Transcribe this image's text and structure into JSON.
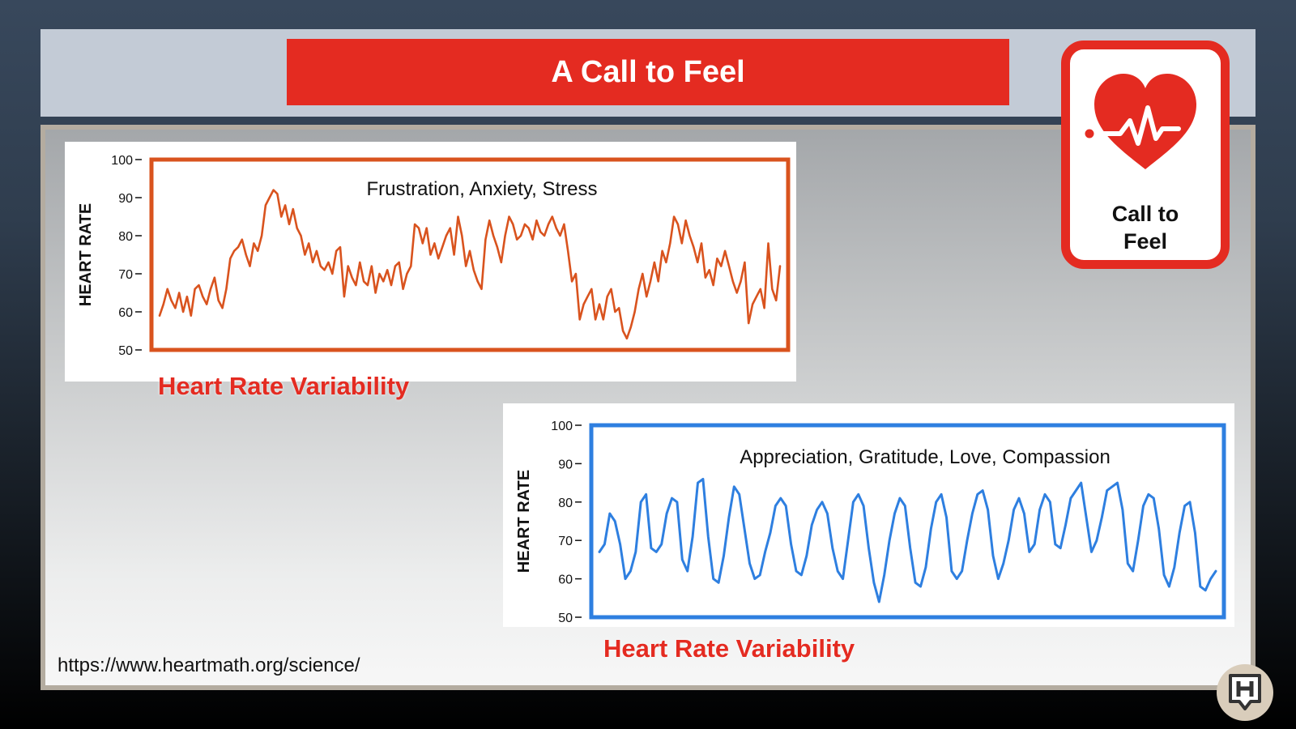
{
  "slide": {
    "title": "A Call to Feel",
    "badge": {
      "icon": "heart-pulse-icon",
      "label": "Call to\nFeel"
    },
    "source_url": "https://www.heartmath.org/science/",
    "logo_icon": "h-speech-bubble-logo-icon",
    "hrv_label_1": "Heart Rate Variability",
    "hrv_label_2": "Heart Rate Variability"
  },
  "colors": {
    "title_red": "#e42b21",
    "stress_line": "#d9531e",
    "calm_line": "#2e7fe0"
  },
  "chart_data": [
    {
      "type": "line",
      "title": "Frustration, Anxiety, Stress",
      "xlabel": "",
      "ylabel": "HEART RATE",
      "ylim": [
        50,
        100
      ],
      "yticks": [
        50,
        60,
        70,
        80,
        90,
        100
      ],
      "grid": false,
      "series": [
        {
          "color": "#d9531e",
          "values": [
            59,
            62,
            66,
            63,
            61,
            65,
            60,
            64,
            59,
            66,
            67,
            64,
            62,
            66,
            69,
            63,
            61,
            66,
            74,
            76,
            77,
            79,
            75,
            72,
            78,
            76,
            80,
            88,
            90,
            92,
            91,
            85,
            88,
            83,
            87,
            82,
            80,
            75,
            78,
            73,
            76,
            72,
            71,
            73,
            70,
            76,
            77,
            64,
            72,
            69,
            67,
            73,
            68,
            67,
            72,
            65,
            70,
            68,
            71,
            67,
            72,
            73,
            66,
            70,
            72,
            83,
            82,
            78,
            82,
            75,
            78,
            74,
            77,
            80,
            82,
            75,
            85,
            80,
            72,
            76,
            71,
            68,
            66,
            79,
            84,
            80,
            77,
            73,
            80,
            85,
            83,
            79,
            80,
            83,
            82,
            79,
            84,
            81,
            80,
            83,
            85,
            82,
            80,
            83,
            76,
            68,
            70,
            58,
            62,
            64,
            66,
            58,
            62,
            58,
            64,
            66,
            60,
            61,
            55,
            53,
            56,
            60,
            66,
            70,
            64,
            68,
            73,
            68,
            76,
            73,
            78,
            85,
            83,
            78,
            84,
            80,
            77,
            73,
            78,
            69,
            71,
            67,
            74,
            72,
            76,
            72,
            68,
            65,
            68,
            73,
            57,
            62,
            64,
            66,
            61,
            78,
            66,
            63,
            72
          ]
        }
      ]
    },
    {
      "type": "line",
      "title": "Appreciation, Gratitude, Love, Compassion",
      "xlabel": "",
      "ylabel": "HEART RATE",
      "ylim": [
        50,
        100
      ],
      "yticks": [
        50,
        60,
        70,
        80,
        90,
        100
      ],
      "grid": false,
      "series": [
        {
          "color": "#2e7fe0",
          "values": [
            67,
            69,
            77,
            75,
            69,
            60,
            62,
            67,
            80,
            82,
            68,
            67,
            69,
            77,
            81,
            80,
            65,
            62,
            71,
            85,
            86,
            71,
            60,
            59,
            66,
            76,
            84,
            82,
            73,
            64,
            60,
            61,
            67,
            72,
            79,
            81,
            79,
            69,
            62,
            61,
            66,
            74,
            78,
            80,
            77,
            68,
            62,
            60,
            70,
            80,
            82,
            79,
            68,
            59,
            54,
            61,
            70,
            77,
            81,
            79,
            68,
            59,
            58,
            63,
            73,
            80,
            82,
            76,
            62,
            60,
            62,
            70,
            77,
            82,
            83,
            78,
            66,
            60,
            64,
            70,
            78,
            81,
            77,
            67,
            69,
            78,
            82,
            80,
            69,
            68,
            74,
            81,
            83,
            85,
            76,
            67,
            70,
            76,
            83,
            84,
            85,
            78,
            64,
            62,
            70,
            79,
            82,
            81,
            73,
            61,
            58,
            63,
            72,
            79,
            80,
            72,
            58,
            57,
            60,
            62
          ]
        }
      ]
    }
  ]
}
